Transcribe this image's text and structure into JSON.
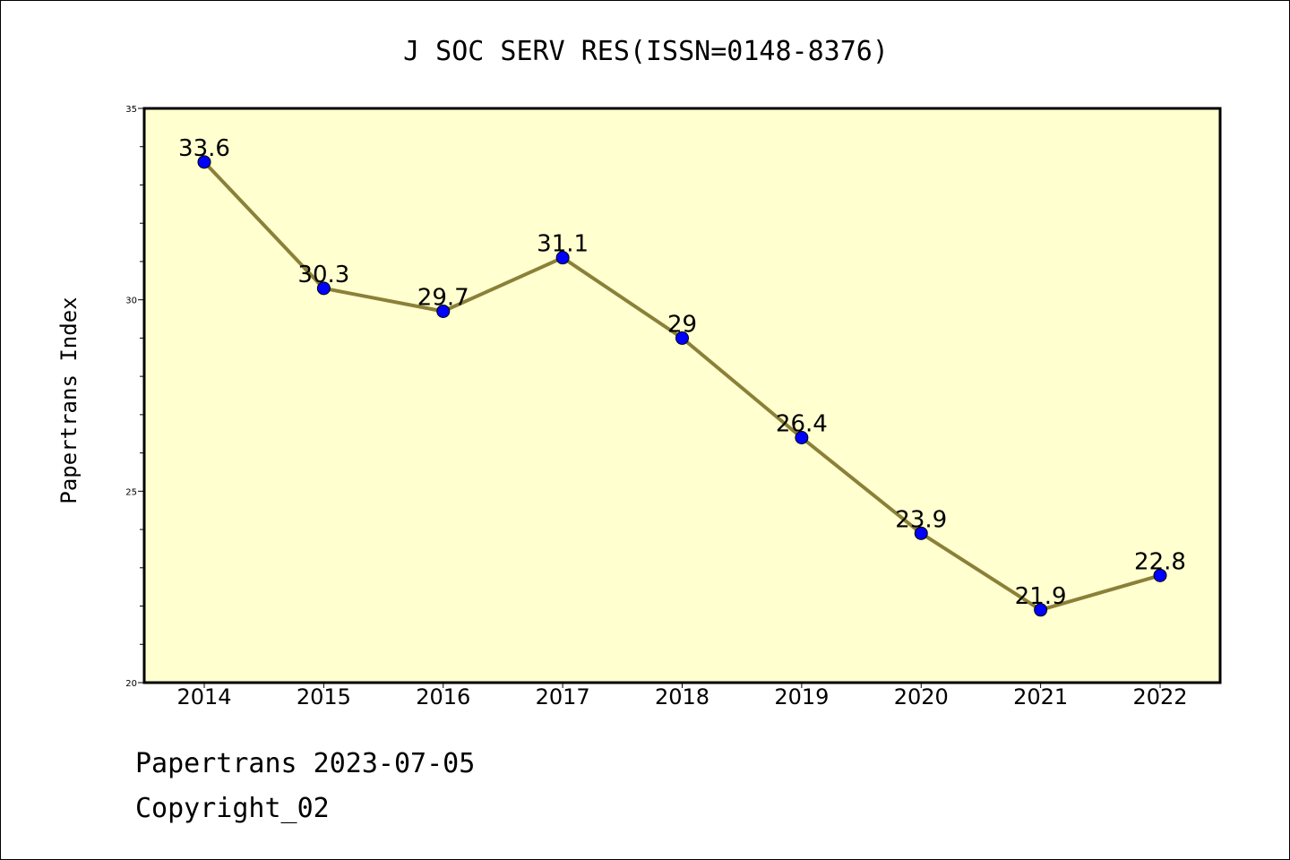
{
  "chart_data": {
    "type": "line",
    "title": "J SOC SERV RES(ISSN=0148-8376)",
    "xlabel": "",
    "ylabel": "Papertrans Index",
    "categories": [
      "2014",
      "2015",
      "2016",
      "2017",
      "2018",
      "2019",
      "2020",
      "2021",
      "2022"
    ],
    "series": [
      {
        "values": [
          33.6,
          30.3,
          29.7,
          31.1,
          29.0,
          26.4,
          23.9,
          21.9,
          22.8
        ],
        "labels": [
          "33.6",
          "30.3",
          "29.7",
          "31.1",
          "29",
          "26.4",
          "23.9",
          "21.9",
          "22.8"
        ]
      }
    ],
    "ylim": [
      20,
      35
    ],
    "yticks": [
      20,
      25,
      30,
      35
    ],
    "grid": false,
    "colors": {
      "plot_background": "#ffffd0",
      "line": "#8b8038",
      "marker": "#0000ff"
    }
  },
  "footer": {
    "line1": "Papertrans 2023-07-05",
    "line2": "Copyright_02"
  }
}
